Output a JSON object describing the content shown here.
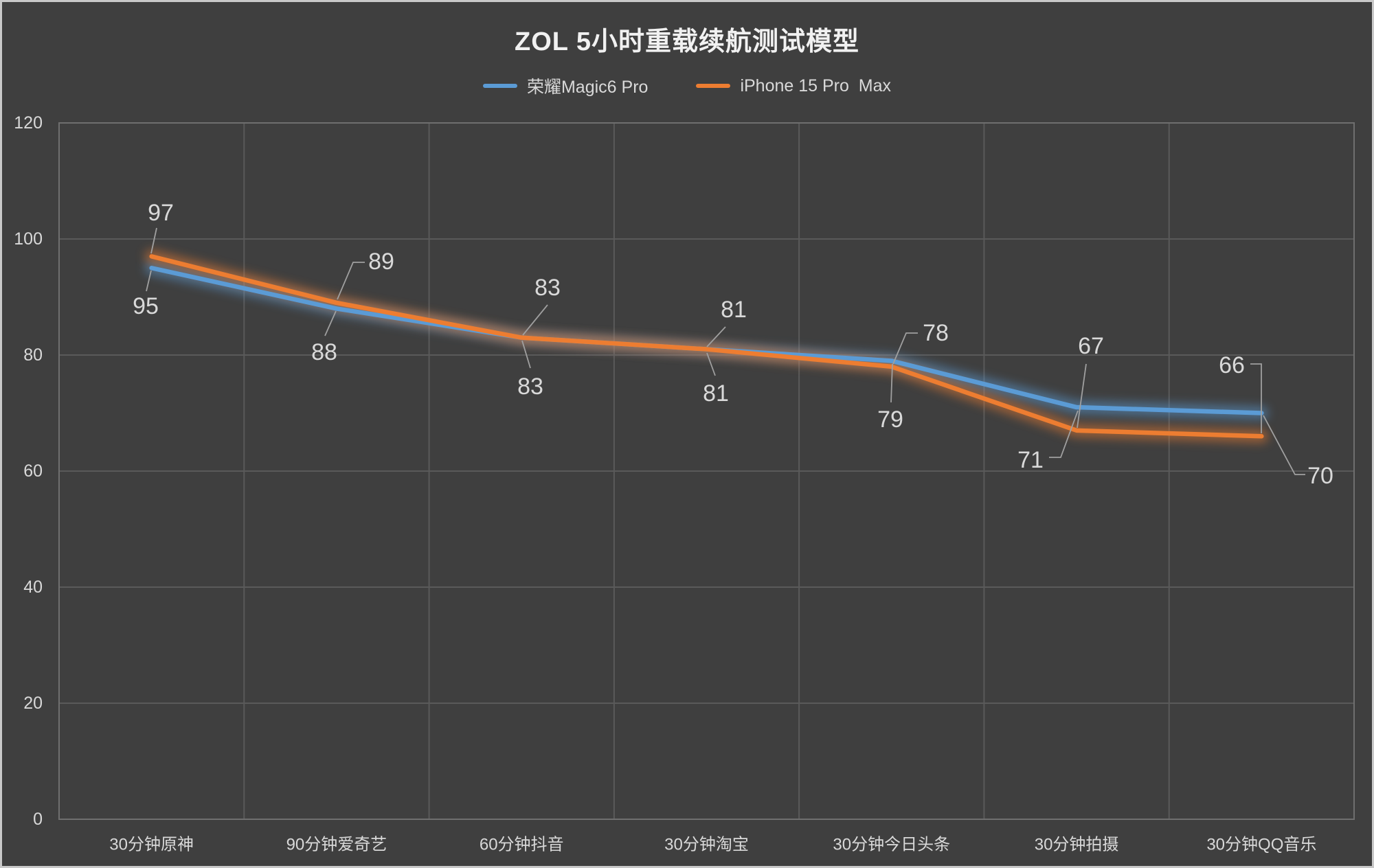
{
  "window": {
    "background": "#3f3f3f",
    "frame_border": "#c9c9c9",
    "gridline_color": "#5a5a5a",
    "plot_border_color": "#6f6f6f",
    "text_color": "#d9d9d9",
    "title_color": "#f1f1f1",
    "leader_color": "#a0a0a0"
  },
  "chart_data": {
    "type": "line",
    "title": "ZOL 5小时重载续航测试模型",
    "categories": [
      "30分钟原神",
      "90分钟爱奇艺",
      "60分钟抖音",
      "30分钟淘宝",
      "30分钟今日头条",
      "30分钟拍摄",
      "30分钟QQ音乐"
    ],
    "series": [
      {
        "name": "荣耀Magic6 Pro",
        "color": "#5B9BD5",
        "values": [
          95,
          88,
          83,
          81,
          79,
          71,
          70
        ],
        "label_side": "below"
      },
      {
        "name": "iPhone 15 Pro  Max",
        "color": "#ED7D31",
        "values": [
          97,
          89,
          83,
          81,
          78,
          67,
          66
        ],
        "label_side": "above"
      }
    ],
    "xlabel": "",
    "ylabel": "",
    "ylim": [
      0,
      120
    ],
    "yticks": [
      0,
      20,
      40,
      60,
      80,
      100,
      120
    ],
    "grid": true,
    "legend_position": "top",
    "line_glow": true
  }
}
